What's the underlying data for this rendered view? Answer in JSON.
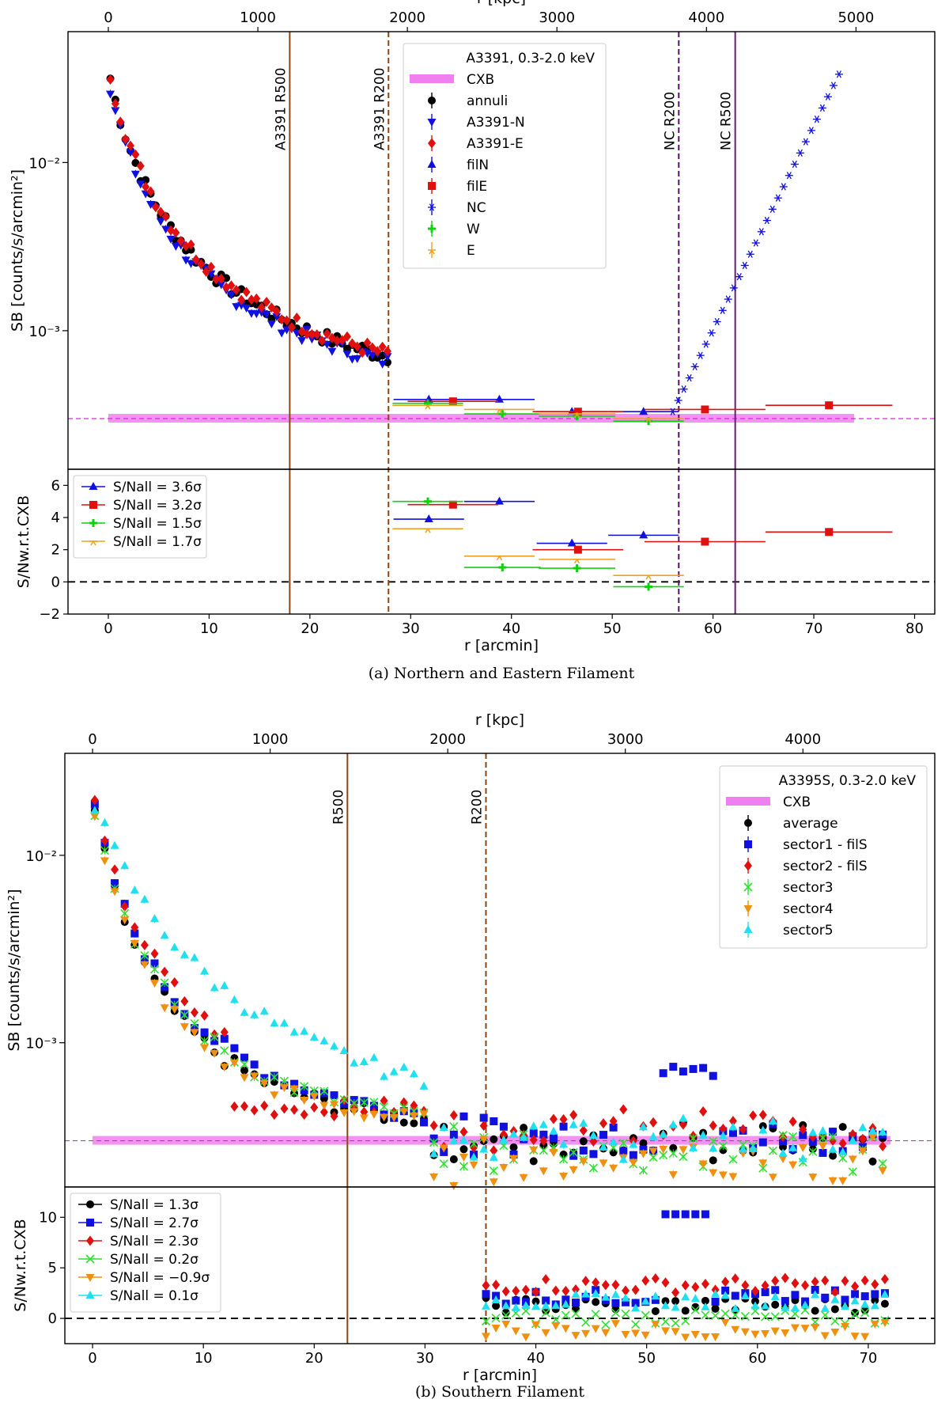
{
  "chart_data": [
    {
      "id": "a",
      "type": "scatter",
      "caption": "(a) Northern and Eastern Filament",
      "title": "A3391, 0.3-2.0 keV",
      "xlabel": "r [arcmin]",
      "xlabel_top": "r [kpc]",
      "ylabel_top": "SB [counts/s/arcmin²]",
      "ylabel_bottom": "S/Nw.r.t.CXB",
      "xlim": [
        -4,
        82
      ],
      "kpc_per_arcmin": 67.4,
      "xticks": [
        "0",
        "10",
        "20",
        "30",
        "40",
        "50",
        "60",
        "70",
        "80"
      ],
      "xticks_top": [
        "0",
        "1000",
        "2000",
        "3000",
        "4000",
        "5000"
      ],
      "ylim_top_log": [
        0.00015,
        0.06
      ],
      "yticks_top": [
        "10⁻²",
        "10⁻³"
      ],
      "ylim_bottom": [
        -2,
        7
      ],
      "yticks_bottom": [
        "−2",
        "0",
        "2",
        "4",
        "6"
      ],
      "cxb": {
        "label": "CXB",
        "level": 0.0003,
        "x_range": [
          0,
          74
        ]
      },
      "vlines": [
        {
          "x": 18.0,
          "label": "A3391 R500",
          "color": "#8b4513",
          "style": "solid"
        },
        {
          "x": 27.8,
          "label": "A3391 R200",
          "color": "#8b4513",
          "style": "dashed"
        },
        {
          "x": 56.6,
          "label": "NC R200",
          "color": "#5a0f6e",
          "style": "dashed"
        },
        {
          "x": 62.2,
          "label": "NC R500",
          "color": "#6a1b7a",
          "style": "solid"
        }
      ],
      "series": [
        {
          "name": "annuli",
          "color": "#000000",
          "marker": "circle",
          "sb_amp": 0.036,
          "sb_decay": 0.3,
          "x_max": 28
        },
        {
          "name": "A3391-N",
          "color": "#1010e0",
          "marker": "tri-down",
          "sb_amp": 0.032,
          "sb_decay": 0.38,
          "x_max": 28
        },
        {
          "name": "A3391-E",
          "color": "#e01010",
          "marker": "diamond",
          "sb_amp": 0.038,
          "sb_decay": 0.28,
          "x_max": 28
        },
        {
          "name": "filN",
          "color": "#1010e0",
          "marker": "tri-up",
          "points": [
            [
              31.8,
              0.00039,
              3.5
            ],
            [
              38.8,
              0.00039,
              3.5
            ],
            [
              46,
              0.00033,
              3.5
            ],
            [
              53.1,
              0.00033,
              3.5
            ]
          ],
          "sn": [
            [
              31.8,
              3.9,
              3.5
            ],
            [
              38.8,
              5.0,
              3.5
            ],
            [
              46,
              2.4,
              3.5
            ],
            [
              53.1,
              2.9,
              3.5
            ]
          ]
        },
        {
          "name": "filE",
          "color": "#e01010",
          "marker": "square",
          "points": [
            [
              34.2,
              0.00038,
              4.5
            ],
            [
              46.6,
              0.00033,
              4.5
            ],
            [
              59.2,
              0.00034,
              6
            ],
            [
              71.5,
              0.00036,
              6.3
            ]
          ],
          "sn": [
            [
              34.2,
              4.8,
              4.5
            ],
            [
              46.6,
              2.0,
              4.5
            ],
            [
              59.2,
              2.5,
              6
            ],
            [
              71.5,
              3.1,
              6.3
            ]
          ]
        },
        {
          "name": "NC",
          "color": "#1010e0",
          "marker": "asterisk"
        },
        {
          "name": "W",
          "color": "#10d010",
          "marker": "plus",
          "points": [
            [
              31.7,
              0.00037,
              3.5
            ],
            [
              39.1,
              0.00032,
              3.8
            ],
            [
              46.5,
              0.00031,
              3.8
            ],
            [
              53.6,
              0.00029,
              3.5
            ]
          ],
          "sn": [
            [
              31.7,
              5.0,
              3.5
            ],
            [
              39.1,
              0.9,
              3.8
            ],
            [
              46.5,
              0.85,
              3.8
            ],
            [
              53.6,
              -0.3,
              3.5
            ]
          ]
        },
        {
          "name": "E",
          "color": "#f0a020",
          "marker": "tri-left",
          "points": [
            [
              31.7,
              0.00036,
              3.5
            ],
            [
              38.8,
              0.00034,
              3.5
            ],
            [
              46.5,
              0.00032,
              3.8
            ],
            [
              53.6,
              0.0003,
              3.5
            ]
          ],
          "sn": [
            [
              31.7,
              3.3,
              3.5
            ],
            [
              38.8,
              1.6,
              3.5
            ],
            [
              46.5,
              1.4,
              3.8
            ],
            [
              53.6,
              0.4,
              3.5
            ]
          ]
        }
      ],
      "sn_legend": [
        {
          "label": "S/Nall = 3.6σ",
          "color": "#1010e0",
          "marker": "tri-up"
        },
        {
          "label": "S/Nall = 3.2σ",
          "color": "#e01010",
          "marker": "square"
        },
        {
          "label": "S/Nall = 1.5σ",
          "color": "#10d010",
          "marker": "plus"
        },
        {
          "label": "S/Nall = 1.7σ",
          "color": "#f0a020",
          "marker": "tri-left"
        }
      ]
    },
    {
      "id": "b",
      "type": "scatter",
      "caption": "(b) Southern Filament",
      "title": "A3395S, 0.3-2.0 keV",
      "xlabel": "r [arcmin]",
      "xlabel_top": "r [kpc]",
      "ylabel_top": "SB [counts/s/arcmin²]",
      "ylabel_bottom": "S/Nw.r.t.CXB",
      "xlim": [
        -2.5,
        76
      ],
      "kpc_per_arcmin": 62.4,
      "xticks": [
        "0",
        "10",
        "20",
        "30",
        "40",
        "50",
        "60",
        "70"
      ],
      "xticks_top": [
        "0",
        "1000",
        "2000",
        "3000",
        "4000"
      ],
      "ylim_top_log": [
        0.00017,
        0.035
      ],
      "yticks_top": [
        "10⁻²",
        "10⁻³"
      ],
      "ylim_bottom": [
        -2.5,
        13
      ],
      "yticks_bottom": [
        "0",
        "5",
        "10"
      ],
      "cxb": {
        "label": "CXB",
        "level": 0.0003,
        "x_range": [
          0,
          72
        ]
      },
      "vlines": [
        {
          "x": 23.0,
          "label": "R500",
          "color": "#8b4513",
          "style": "solid"
        },
        {
          "x": 35.5,
          "label": "R200",
          "color": "#8b4513",
          "style": "dashed"
        }
      ],
      "series": [
        {
          "name": "average",
          "color": "#000000",
          "marker": "circle",
          "sb_amp": 0.02,
          "sb_decay": 0.2,
          "offset": 0
        },
        {
          "name": "sector1 - filS",
          "color": "#1010e0",
          "marker": "square",
          "sb_amp": 0.02,
          "sb_decay": 0.3,
          "offset": 0.2
        },
        {
          "name": "sector2 - filS",
          "color": "#e01010",
          "marker": "diamond",
          "sb_amp": 0.02,
          "sb_decay": 0.38,
          "offset": 0.5
        },
        {
          "name": "sector3",
          "color": "#30e030",
          "marker": "x",
          "sb_amp": 0.02,
          "sb_decay": 0.26,
          "offset": -0.3
        },
        {
          "name": "sector4",
          "color": "#f09010",
          "marker": "tri-down",
          "sb_amp": 0.02,
          "sb_decay": 0.18,
          "offset": -0.6
        },
        {
          "name": "sector5",
          "color": "#20e0f0",
          "marker": "tri-up",
          "sb_amp": 0.02,
          "sb_decay": 0.14,
          "offset": 0.1
        }
      ],
      "sn_legend": [
        {
          "label": "S/Nall = 1.3σ",
          "color": "#000000",
          "marker": "circle"
        },
        {
          "label": "S/Nall = 2.7σ",
          "color": "#1010e0",
          "marker": "square"
        },
        {
          "label": "S/Nall = 2.3σ",
          "color": "#e01010",
          "marker": "diamond"
        },
        {
          "label": "S/Nall = 0.2σ",
          "color": "#30e030",
          "marker": "x"
        },
        {
          "label": "S/Nall = −0.9σ",
          "color": "#f09010",
          "marker": "tri-down"
        },
        {
          "label": "S/Nall = 0.1σ",
          "color": "#20e0f0",
          "marker": "tri-up"
        }
      ]
    }
  ]
}
